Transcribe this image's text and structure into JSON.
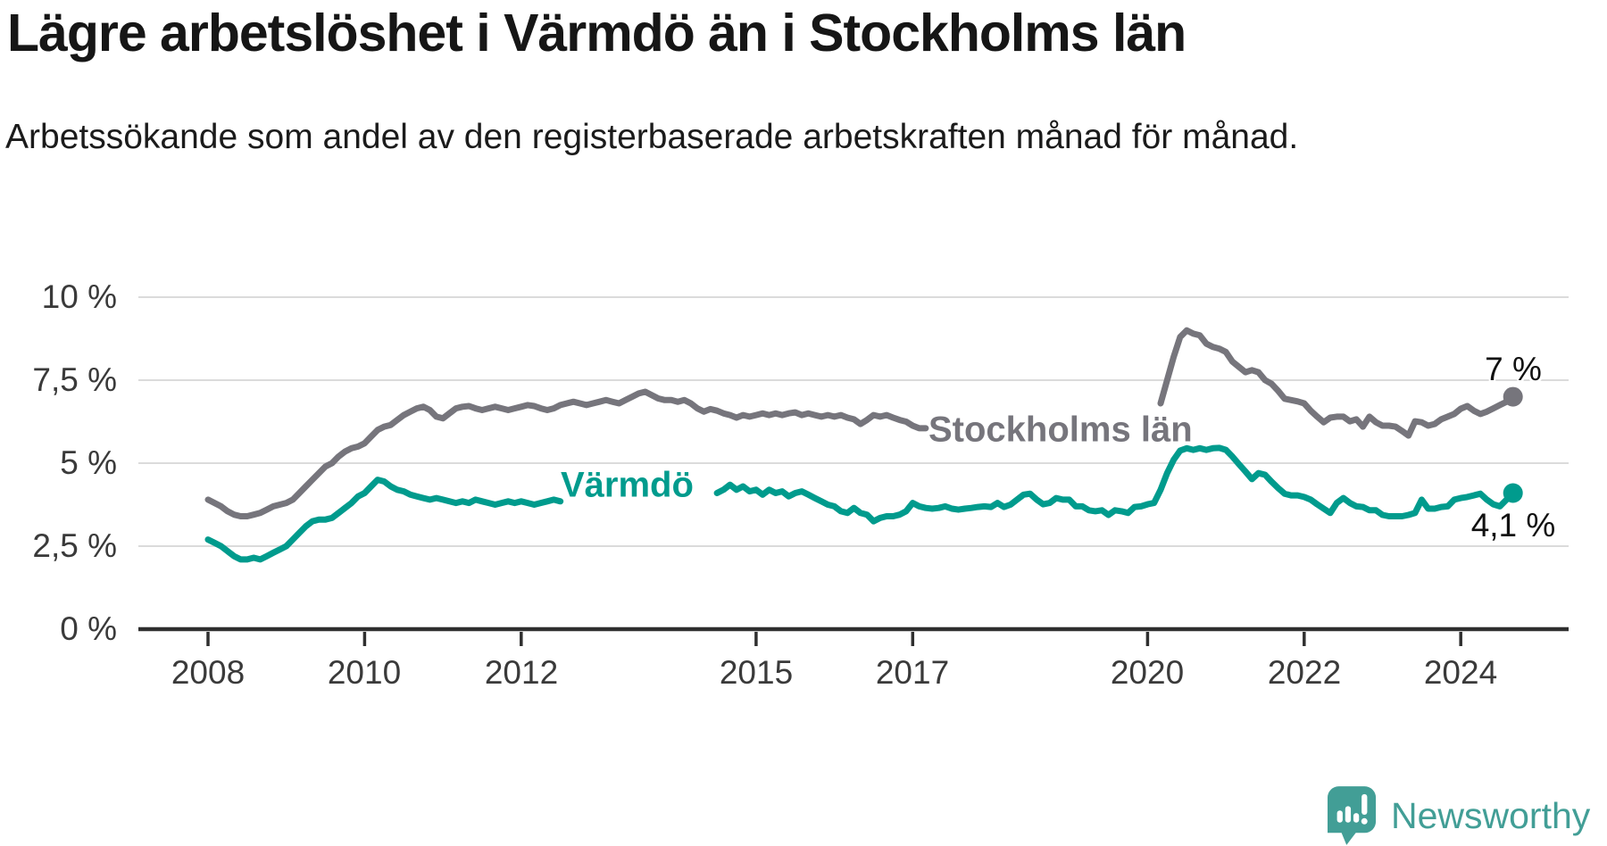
{
  "header": {
    "title": "Lägre arbetslöshet i Värmdö än i Stockholms län",
    "subtitle": "Arbetssökande som andel av den registerbaserade arbetskraften månad för månad."
  },
  "chart_data": {
    "type": "line",
    "title": "Lägre arbetslöshet i Värmdö än i Stockholms län",
    "x_unit": "month",
    "x_start_year": 2008,
    "x_start_month": 1,
    "x_end_year": 2024,
    "x_end_month": 9,
    "ylim": [
      0,
      10
    ],
    "grid": "horizontal",
    "legend_position": "inline-labels",
    "ytick_values": [
      0,
      2.5,
      5,
      7.5,
      10
    ],
    "ytick_labels": [
      "0 %",
      "2,5 %",
      "5 %",
      "7,5 %",
      "10 %"
    ],
    "xtick_years": [
      2008,
      2010,
      2012,
      2015,
      2017,
      2020,
      2022,
      2024
    ],
    "xtick_labels": [
      "2008",
      "2010",
      "2012",
      "2015",
      "2017",
      "2020",
      "2022",
      "2024"
    ],
    "series": [
      {
        "name": "Stockholms län",
        "color": "#76757c",
        "end_label": "7 %",
        "end_value": 7.0,
        "values": [
          3.9,
          3.8,
          3.7,
          3.55,
          3.45,
          3.4,
          3.4,
          3.45,
          3.5,
          3.6,
          3.7,
          3.75,
          3.8,
          3.9,
          4.1,
          4.3,
          4.5,
          4.7,
          4.9,
          5.0,
          5.2,
          5.35,
          5.45,
          5.5,
          5.6,
          5.8,
          6.0,
          6.1,
          6.15,
          6.3,
          6.45,
          6.55,
          6.65,
          6.7,
          6.6,
          6.4,
          6.35,
          6.5,
          6.65,
          6.7,
          6.72,
          6.65,
          6.6,
          6.65,
          6.7,
          6.65,
          6.6,
          6.65,
          6.7,
          6.75,
          6.72,
          6.65,
          6.6,
          6.65,
          6.75,
          6.8,
          6.85,
          6.8,
          6.75,
          6.8,
          6.85,
          6.9,
          6.85,
          6.8,
          6.9,
          7.0,
          7.1,
          7.15,
          7.05,
          6.95,
          6.9,
          6.9,
          6.85,
          6.9,
          6.8,
          6.65,
          6.55,
          6.63,
          6.58,
          6.5,
          6.45,
          6.37,
          6.45,
          6.4,
          6.45,
          6.5,
          6.45,
          6.5,
          6.45,
          6.5,
          6.53,
          6.45,
          6.5,
          6.45,
          6.4,
          6.45,
          6.4,
          6.45,
          6.37,
          6.32,
          6.18,
          6.3,
          6.45,
          6.4,
          6.45,
          6.37,
          6.3,
          6.25,
          6.13,
          6.05,
          6.05,
          6.13,
          5.97,
          6.1,
          6.0,
          6.05,
          6.1,
          6.05,
          6.08,
          6.1,
          6.1,
          6.12,
          6.1,
          6.08,
          6.1,
          6.15,
          6.12,
          6.1,
          6.08,
          6.1,
          6.12,
          6.1,
          6.1,
          6.08,
          6.1,
          6.12,
          6.1,
          6.15,
          6.18,
          6.15,
          6.12,
          6.1,
          6.15,
          6.2,
          6.2,
          6.3,
          6.8,
          7.5,
          8.2,
          8.8,
          9.0,
          8.9,
          8.85,
          8.6,
          8.5,
          8.45,
          8.35,
          8.06,
          7.9,
          7.74,
          7.8,
          7.74,
          7.5,
          7.39,
          7.18,
          6.94,
          6.9,
          6.86,
          6.8,
          6.58,
          6.4,
          6.23,
          6.37,
          6.4,
          6.4,
          6.26,
          6.32,
          6.1,
          6.4,
          6.23,
          6.13,
          6.13,
          6.1,
          5.97,
          5.83,
          6.26,
          6.23,
          6.13,
          6.18,
          6.32,
          6.4,
          6.48,
          6.64,
          6.72,
          6.58,
          6.48,
          6.55,
          6.65,
          6.75,
          6.85,
          7.0
        ]
      },
      {
        "name": "Värmdö",
        "color": "#009b8d",
        "end_label": "4,1 %",
        "end_value": 4.1,
        "values": [
          2.7,
          2.6,
          2.5,
          2.35,
          2.2,
          2.1,
          2.1,
          2.15,
          2.1,
          2.2,
          2.3,
          2.4,
          2.5,
          2.7,
          2.9,
          3.1,
          3.25,
          3.3,
          3.3,
          3.35,
          3.5,
          3.65,
          3.8,
          4.0,
          4.1,
          4.3,
          4.5,
          4.45,
          4.3,
          4.2,
          4.15,
          4.05,
          4.0,
          3.95,
          3.9,
          3.95,
          3.9,
          3.85,
          3.8,
          3.85,
          3.8,
          3.9,
          3.85,
          3.8,
          3.75,
          3.8,
          3.85,
          3.8,
          3.85,
          3.8,
          3.75,
          3.8,
          3.85,
          3.9,
          3.85,
          3.9,
          3.95,
          3.9,
          3.85,
          3.9,
          3.95,
          4.0,
          4.05,
          3.95,
          3.9,
          3.95,
          4.0,
          4.05,
          4.0,
          3.95,
          4.0,
          4.05,
          4.0,
          3.95,
          4.0,
          4.05,
          4.1,
          4.15,
          4.1,
          4.2,
          4.35,
          4.2,
          4.3,
          4.15,
          4.2,
          4.05,
          4.2,
          4.1,
          4.15,
          4.0,
          4.1,
          4.15,
          4.05,
          3.95,
          3.85,
          3.75,
          3.7,
          3.55,
          3.5,
          3.65,
          3.5,
          3.45,
          3.25,
          3.35,
          3.4,
          3.4,
          3.45,
          3.55,
          3.8,
          3.7,
          3.65,
          3.63,
          3.65,
          3.7,
          3.63,
          3.6,
          3.63,
          3.65,
          3.68,
          3.7,
          3.68,
          3.8,
          3.68,
          3.75,
          3.9,
          4.05,
          4.08,
          3.9,
          3.76,
          3.8,
          3.95,
          3.9,
          3.9,
          3.7,
          3.7,
          3.58,
          3.55,
          3.58,
          3.44,
          3.58,
          3.55,
          3.5,
          3.68,
          3.7,
          3.76,
          3.8,
          4.2,
          4.7,
          5.1,
          5.38,
          5.45,
          5.4,
          5.45,
          5.4,
          5.45,
          5.46,
          5.4,
          5.2,
          4.97,
          4.75,
          4.52,
          4.7,
          4.65,
          4.44,
          4.25,
          4.08,
          4.03,
          4.03,
          3.98,
          3.9,
          3.76,
          3.63,
          3.5,
          3.8,
          3.95,
          3.8,
          3.7,
          3.68,
          3.58,
          3.58,
          3.44,
          3.4,
          3.4,
          3.4,
          3.44,
          3.5,
          3.9,
          3.63,
          3.63,
          3.68,
          3.7,
          3.9,
          3.95,
          3.98,
          4.03,
          4.08,
          3.9,
          3.76,
          3.7,
          3.9,
          4.1
        ]
      }
    ]
  },
  "footer": {
    "brand": "Newsworthy",
    "brand_color": "#429e96",
    "logo_icon": "newsworthy-speech-bubble-chart-icon"
  }
}
